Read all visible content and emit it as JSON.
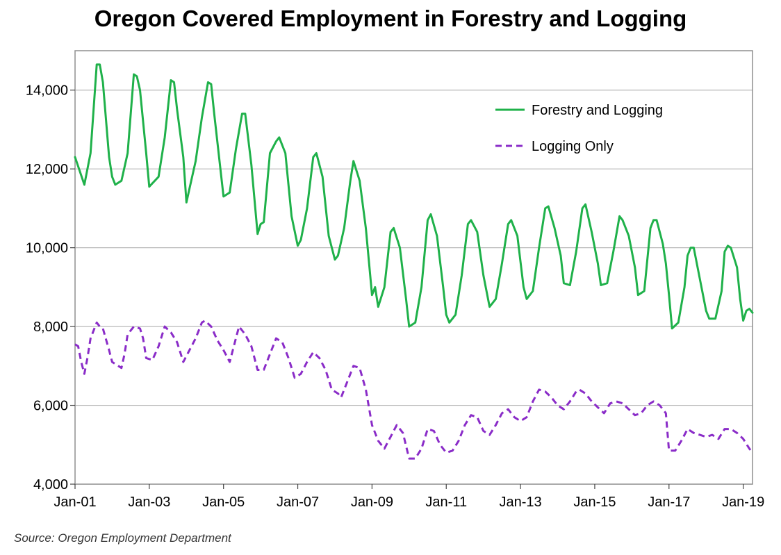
{
  "chart_data": {
    "type": "line",
    "title": "Oregon Covered Employment in Forestry and Logging",
    "xlabel": "",
    "ylabel": "",
    "x_tick_labels": [
      "Jan-01",
      "Jan-03",
      "Jan-05",
      "Jan-07",
      "Jan-09",
      "Jan-11",
      "Jan-13",
      "Jan-15",
      "Jan-17",
      "Jan-19"
    ],
    "y_tick_labels": [
      "4,000",
      "6,000",
      "8,000",
      "10,000",
      "12,000",
      "14,000"
    ],
    "ylim": [
      4000,
      15000
    ],
    "xlim": [
      "2001-01",
      "2019-04"
    ],
    "grid": "horizontal",
    "legend_position": "top-right",
    "series": [
      {
        "name": "Forestry and Logging",
        "color": "#1fb14a",
        "style": "solid",
        "points": [
          [
            "2001-01",
            12300
          ],
          [
            "2001-04",
            11600
          ],
          [
            "2001-06",
            12400
          ],
          [
            "2001-08",
            14650
          ],
          [
            "2001-09",
            14650
          ],
          [
            "2001-10",
            14200
          ],
          [
            "2001-12",
            12300
          ],
          [
            "2002-01",
            11800
          ],
          [
            "2002-02",
            11600
          ],
          [
            "2002-04",
            11700
          ],
          [
            "2002-06",
            12400
          ],
          [
            "2002-08",
            14400
          ],
          [
            "2002-09",
            14350
          ],
          [
            "2002-10",
            14000
          ],
          [
            "2002-12",
            12400
          ],
          [
            "2003-01",
            11550
          ],
          [
            "2003-04",
            11800
          ],
          [
            "2003-06",
            12800
          ],
          [
            "2003-08",
            14250
          ],
          [
            "2003-09",
            14200
          ],
          [
            "2003-10",
            13500
          ],
          [
            "2003-12",
            12300
          ],
          [
            "2004-01",
            11150
          ],
          [
            "2004-02",
            11500
          ],
          [
            "2004-04",
            12200
          ],
          [
            "2004-06",
            13300
          ],
          [
            "2004-08",
            14200
          ],
          [
            "2004-09",
            14150
          ],
          [
            "2004-10",
            13400
          ],
          [
            "2004-12",
            12000
          ],
          [
            "2005-01",
            11300
          ],
          [
            "2005-03",
            11400
          ],
          [
            "2005-05",
            12500
          ],
          [
            "2005-07",
            13400
          ],
          [
            "2005-08",
            13400
          ],
          [
            "2005-10",
            12100
          ],
          [
            "2005-12",
            10350
          ],
          [
            "2006-01",
            10600
          ],
          [
            "2006-02",
            10650
          ],
          [
            "2006-04",
            12400
          ],
          [
            "2006-06",
            12700
          ],
          [
            "2006-07",
            12800
          ],
          [
            "2006-09",
            12400
          ],
          [
            "2006-11",
            10800
          ],
          [
            "2007-01",
            10050
          ],
          [
            "2007-02",
            10200
          ],
          [
            "2007-04",
            11000
          ],
          [
            "2007-06",
            12300
          ],
          [
            "2007-07",
            12400
          ],
          [
            "2007-09",
            11800
          ],
          [
            "2007-11",
            10300
          ],
          [
            "2008-01",
            9700
          ],
          [
            "2008-02",
            9800
          ],
          [
            "2008-04",
            10500
          ],
          [
            "2008-06",
            11700
          ],
          [
            "2008-07",
            12200
          ],
          [
            "2008-09",
            11700
          ],
          [
            "2008-11",
            10500
          ],
          [
            "2009-01",
            8800
          ],
          [
            "2009-02",
            9000
          ],
          [
            "2009-03",
            8500
          ],
          [
            "2009-05",
            9000
          ],
          [
            "2009-07",
            10400
          ],
          [
            "2009-08",
            10500
          ],
          [
            "2009-10",
            10000
          ],
          [
            "2009-12",
            8700
          ],
          [
            "2010-01",
            8000
          ],
          [
            "2010-03",
            8100
          ],
          [
            "2010-05",
            9000
          ],
          [
            "2010-07",
            10700
          ],
          [
            "2010-08",
            10850
          ],
          [
            "2010-10",
            10300
          ],
          [
            "2010-12",
            9000
          ],
          [
            "2011-01",
            8300
          ],
          [
            "2011-02",
            8100
          ],
          [
            "2011-04",
            8300
          ],
          [
            "2011-06",
            9300
          ],
          [
            "2011-08",
            10600
          ],
          [
            "2011-09",
            10700
          ],
          [
            "2011-11",
            10400
          ],
          [
            "2012-01",
            9300
          ],
          [
            "2012-03",
            8500
          ],
          [
            "2012-05",
            8700
          ],
          [
            "2012-07",
            9600
          ],
          [
            "2012-09",
            10600
          ],
          [
            "2012-10",
            10700
          ],
          [
            "2012-12",
            10300
          ],
          [
            "2013-02",
            9000
          ],
          [
            "2013-03",
            8700
          ],
          [
            "2013-05",
            8900
          ],
          [
            "2013-07",
            10000
          ],
          [
            "2013-09",
            11000
          ],
          [
            "2013-10",
            11050
          ],
          [
            "2013-12",
            10500
          ],
          [
            "2014-02",
            9800
          ],
          [
            "2014-03",
            9100
          ],
          [
            "2014-05",
            9050
          ],
          [
            "2014-07",
            9900
          ],
          [
            "2014-09",
            11000
          ],
          [
            "2014-10",
            11100
          ],
          [
            "2014-12",
            10400
          ],
          [
            "2015-02",
            9600
          ],
          [
            "2015-03",
            9050
          ],
          [
            "2015-05",
            9100
          ],
          [
            "2015-07",
            9900
          ],
          [
            "2015-09",
            10800
          ],
          [
            "2015-10",
            10700
          ],
          [
            "2015-12",
            10300
          ],
          [
            "2016-02",
            9500
          ],
          [
            "2016-03",
            8800
          ],
          [
            "2016-05",
            8900
          ],
          [
            "2016-07",
            10500
          ],
          [
            "2016-08",
            10700
          ],
          [
            "2016-09",
            10700
          ],
          [
            "2016-11",
            10100
          ],
          [
            "2016-12",
            9600
          ],
          [
            "2017-01",
            8800
          ],
          [
            "2017-02",
            7950
          ],
          [
            "2017-04",
            8100
          ],
          [
            "2017-06",
            9000
          ],
          [
            "2017-07",
            9800
          ],
          [
            "2017-08",
            10000
          ],
          [
            "2017-09",
            10000
          ],
          [
            "2017-11",
            9200
          ],
          [
            "2018-01",
            8400
          ],
          [
            "2018-02",
            8200
          ],
          [
            "2018-04",
            8200
          ],
          [
            "2018-06",
            8900
          ],
          [
            "2018-07",
            9900
          ],
          [
            "2018-08",
            10050
          ],
          [
            "2018-09",
            10000
          ],
          [
            "2018-11",
            9500
          ],
          [
            "2018-12",
            8700
          ],
          [
            "2019-01",
            8150
          ],
          [
            "2019-02",
            8400
          ],
          [
            "2019-03",
            8450
          ],
          [
            "2019-04",
            8350
          ]
        ]
      },
      {
        "name": "Logging Only",
        "color": "#8a2cc8",
        "style": "dashed",
        "points": [
          [
            "2001-01",
            7550
          ],
          [
            "2001-02",
            7500
          ],
          [
            "2001-03",
            7100
          ],
          [
            "2001-04",
            6800
          ],
          [
            "2001-05",
            7200
          ],
          [
            "2001-06",
            7700
          ],
          [
            "2001-08",
            8100
          ],
          [
            "2001-09",
            8000
          ],
          [
            "2001-10",
            7950
          ],
          [
            "2001-12",
            7400
          ],
          [
            "2002-01",
            7100
          ],
          [
            "2002-03",
            7000
          ],
          [
            "2002-04",
            6950
          ],
          [
            "2002-05",
            7300
          ],
          [
            "2002-06",
            7800
          ],
          [
            "2002-08",
            8000
          ],
          [
            "2002-10",
            7950
          ],
          [
            "2002-11",
            7700
          ],
          [
            "2002-12",
            7200
          ],
          [
            "2003-02",
            7150
          ],
          [
            "2003-04",
            7500
          ],
          [
            "2003-06",
            8000
          ],
          [
            "2003-08",
            7850
          ],
          [
            "2003-10",
            7600
          ],
          [
            "2003-12",
            7100
          ],
          [
            "2004-02",
            7400
          ],
          [
            "2004-04",
            7700
          ],
          [
            "2004-06",
            8100
          ],
          [
            "2004-07",
            8150
          ],
          [
            "2004-09",
            8000
          ],
          [
            "2004-11",
            7650
          ],
          [
            "2005-01",
            7400
          ],
          [
            "2005-03",
            7100
          ],
          [
            "2005-05",
            7700
          ],
          [
            "2005-06",
            8000
          ],
          [
            "2005-08",
            7800
          ],
          [
            "2005-10",
            7500
          ],
          [
            "2005-12",
            6900
          ],
          [
            "2006-02",
            6900
          ],
          [
            "2006-04",
            7300
          ],
          [
            "2006-06",
            7700
          ],
          [
            "2006-08",
            7600
          ],
          [
            "2006-10",
            7200
          ],
          [
            "2006-12",
            6700
          ],
          [
            "2007-02",
            6800
          ],
          [
            "2007-04",
            7100
          ],
          [
            "2007-06",
            7350
          ],
          [
            "2007-08",
            7200
          ],
          [
            "2007-10",
            6900
          ],
          [
            "2007-12",
            6400
          ],
          [
            "2008-02",
            6300
          ],
          [
            "2008-03",
            6200
          ],
          [
            "2008-05",
            6600
          ],
          [
            "2008-07",
            7000
          ],
          [
            "2008-09",
            6950
          ],
          [
            "2008-11",
            6400
          ],
          [
            "2009-01",
            5500
          ],
          [
            "2009-03",
            5100
          ],
          [
            "2009-05",
            4900
          ],
          [
            "2009-07",
            5200
          ],
          [
            "2009-09",
            5500
          ],
          [
            "2009-11",
            5300
          ],
          [
            "2010-01",
            4650
          ],
          [
            "2010-03",
            4650
          ],
          [
            "2010-05",
            4900
          ],
          [
            "2010-07",
            5400
          ],
          [
            "2010-09",
            5350
          ],
          [
            "2010-11",
            5000
          ],
          [
            "2011-01",
            4800
          ],
          [
            "2011-03",
            4850
          ],
          [
            "2011-05",
            5100
          ],
          [
            "2011-07",
            5500
          ],
          [
            "2011-09",
            5750
          ],
          [
            "2011-11",
            5700
          ],
          [
            "2012-01",
            5350
          ],
          [
            "2012-03",
            5250
          ],
          [
            "2012-05",
            5500
          ],
          [
            "2012-07",
            5800
          ],
          [
            "2012-09",
            5900
          ],
          [
            "2012-11",
            5700
          ],
          [
            "2013-01",
            5600
          ],
          [
            "2013-03",
            5700
          ],
          [
            "2013-05",
            6100
          ],
          [
            "2013-07",
            6400
          ],
          [
            "2013-09",
            6350
          ],
          [
            "2013-11",
            6200
          ],
          [
            "2014-01",
            6000
          ],
          [
            "2014-03",
            5900
          ],
          [
            "2014-05",
            6100
          ],
          [
            "2014-07",
            6350
          ],
          [
            "2014-08",
            6400
          ],
          [
            "2014-10",
            6300
          ],
          [
            "2014-12",
            6100
          ],
          [
            "2015-02",
            5950
          ],
          [
            "2015-04",
            5800
          ],
          [
            "2015-06",
            6050
          ],
          [
            "2015-08",
            6100
          ],
          [
            "2015-10",
            6050
          ],
          [
            "2015-12",
            5900
          ],
          [
            "2016-02",
            5750
          ],
          [
            "2016-04",
            5800
          ],
          [
            "2016-06",
            6000
          ],
          [
            "2016-08",
            6100
          ],
          [
            "2016-10",
            6000
          ],
          [
            "2016-12",
            5800
          ],
          [
            "2017-01",
            4850
          ],
          [
            "2017-03",
            4850
          ],
          [
            "2017-05",
            5100
          ],
          [
            "2017-07",
            5400
          ],
          [
            "2017-09",
            5300
          ],
          [
            "2017-11",
            5250
          ],
          [
            "2018-01",
            5200
          ],
          [
            "2018-03",
            5250
          ],
          [
            "2018-05",
            5150
          ],
          [
            "2018-07",
            5400
          ],
          [
            "2018-09",
            5400
          ],
          [
            "2018-11",
            5300
          ],
          [
            "2019-01",
            5150
          ],
          [
            "2019-03",
            4900
          ],
          [
            "2019-04",
            4800
          ]
        ]
      }
    ]
  },
  "source_note": "Source: Oregon Employment Department",
  "colors": {
    "grid": "#b8b8b8",
    "frame": "#8f8f8f",
    "axis": "#444444"
  }
}
